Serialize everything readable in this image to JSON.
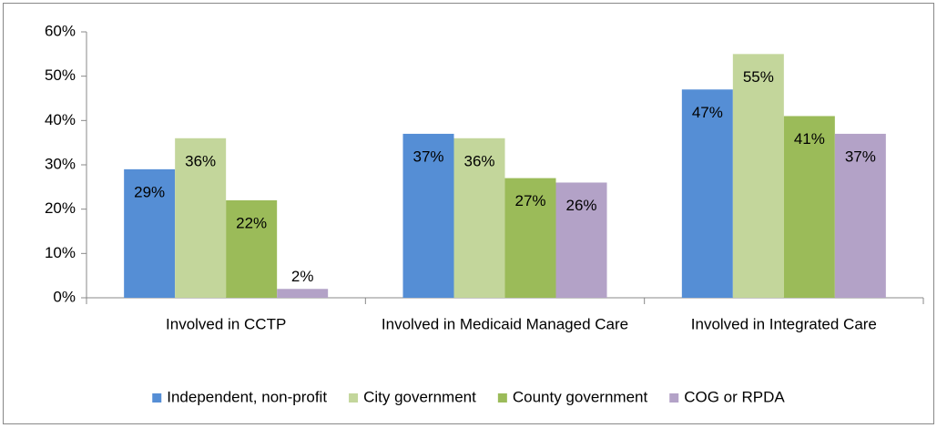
{
  "chart_data": {
    "type": "bar",
    "categories": [
      "Involved in CCTP",
      "Involved in Medicaid Managed Care",
      "Involved in Integrated Care"
    ],
    "series": [
      {
        "name": "Independent, non-profit",
        "color": "#558ed5",
        "values": [
          29,
          37,
          47
        ],
        "value_labels": [
          "29%",
          "37%",
          "47%"
        ]
      },
      {
        "name": "City government",
        "color": "#c3d69b",
        "values": [
          36,
          36,
          55
        ],
        "value_labels": [
          "36%",
          "36%",
          "55%"
        ]
      },
      {
        "name": "County government",
        "color": "#9bbb59",
        "values": [
          22,
          27,
          41
        ],
        "value_labels": [
          "22%",
          "27%",
          "41%"
        ]
      },
      {
        "name": "COG or RPDA",
        "color": "#b3a2c7",
        "values": [
          2,
          26,
          37
        ],
        "value_labels": [
          "2%",
          "26%",
          "37%"
        ]
      }
    ],
    "ylim": [
      0,
      60
    ],
    "yticks": [
      {
        "value": 0,
        "label": "0%"
      },
      {
        "value": 10,
        "label": "10%"
      },
      {
        "value": 20,
        "label": "20%"
      },
      {
        "value": 30,
        "label": "30%"
      },
      {
        "value": 40,
        "label": "40%"
      },
      {
        "value": 50,
        "label": "50%"
      },
      {
        "value": 60,
        "label": "60%"
      }
    ],
    "legend": "bottom"
  }
}
